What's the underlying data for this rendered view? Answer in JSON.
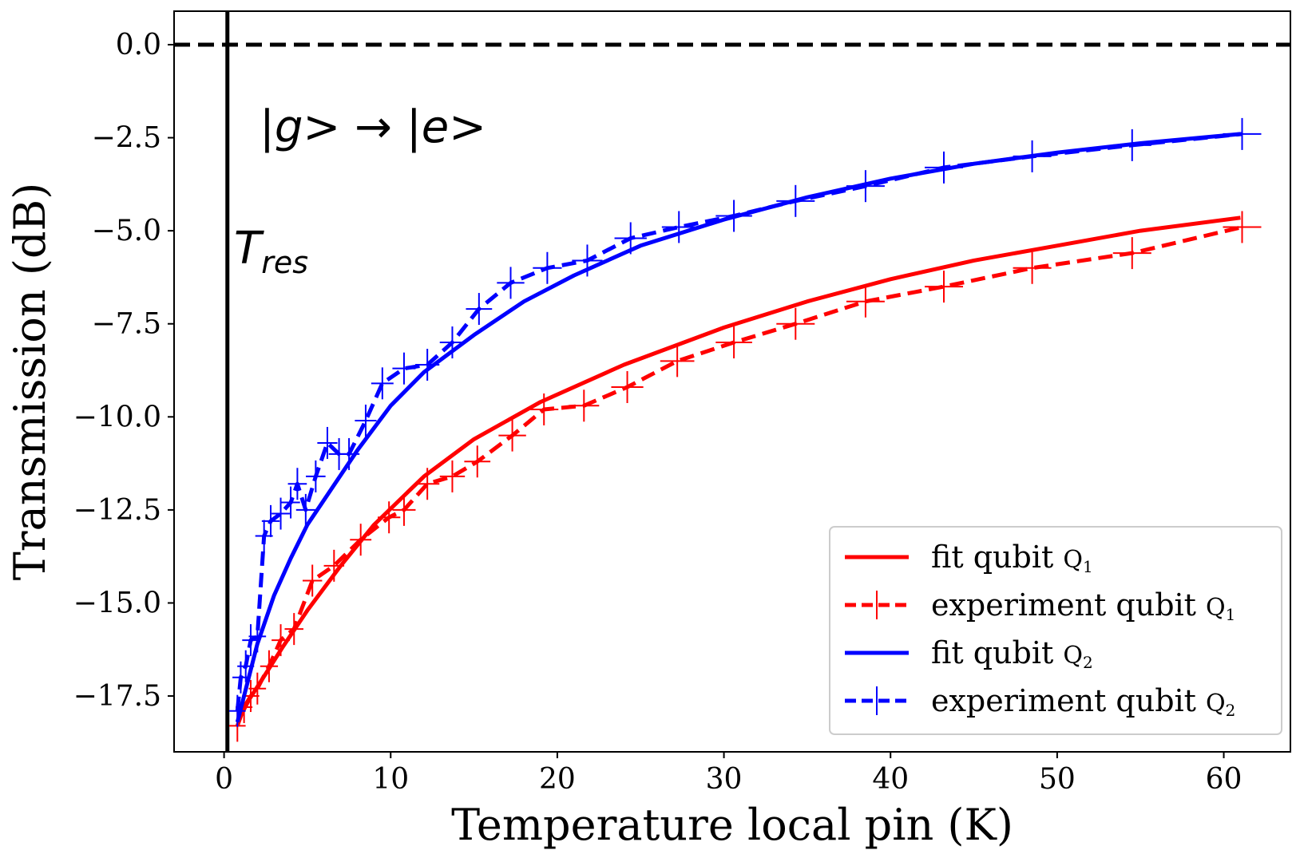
{
  "chart_data": {
    "type": "line",
    "xlabel": "Temperature local pin (K)",
    "ylabel": "Transmission (dB)",
    "xlim": [
      -3,
      64
    ],
    "ylim": [
      -19.0,
      0.9
    ],
    "xticks": [
      0,
      10,
      20,
      30,
      40,
      50,
      60
    ],
    "yticks": [
      0.0,
      -2.5,
      -5.0,
      -7.5,
      -10.0,
      -12.5,
      -15.0,
      -17.5
    ],
    "ytick_labels": [
      "0.0",
      "−2.5",
      "−5.0",
      "−7.5",
      "−10.0",
      "−12.5",
      "−15.0",
      "−17.5"
    ],
    "xtick_labels": [
      "0",
      "10",
      "20",
      "30",
      "40",
      "50",
      "60"
    ],
    "grid": false,
    "legend_position": "lower-right",
    "reference_lines": [
      {
        "orientation": "horizontal",
        "value": 0.0,
        "style": "dashed",
        "color": "#000000"
      },
      {
        "orientation": "vertical",
        "value": 0.2,
        "style": "solid",
        "color": "#000000"
      }
    ],
    "annotations": {
      "transition_text": "|g> → |e>",
      "tres_main": "T",
      "tres_sub": "res"
    },
    "series": [
      {
        "name": "fit qubit",
        "name_subscript": "Q1",
        "color": "#ff0000",
        "style": "solid",
        "x": [
          0.8,
          1.5,
          2.5,
          3.5,
          5,
          7,
          9,
          12,
          15,
          19,
          24,
          30,
          35,
          40,
          45,
          50,
          55,
          61
        ],
        "y": [
          -18.2,
          -17.6,
          -16.9,
          -16.2,
          -15.2,
          -14.0,
          -12.9,
          -11.6,
          -10.6,
          -9.6,
          -8.6,
          -7.6,
          -6.9,
          -6.3,
          -5.8,
          -5.4,
          -5.0,
          -4.65
        ]
      },
      {
        "name": "experiment qubit",
        "name_subscript": "Q1",
        "color": "#ff0000",
        "style": "dashed",
        "x": [
          0.8,
          1.2,
          1.6,
          2.0,
          2.7,
          3.4,
          4.2,
          5.3,
          6.6,
          8.2,
          9.9,
          10.8,
          12.2,
          13.7,
          15.2,
          17.3,
          19.2,
          21.6,
          24.2,
          27.2,
          30.6,
          34.3,
          38.5,
          43.2,
          48.5,
          54.5,
          61.1
        ],
        "y": [
          -18.3,
          -17.8,
          -17.5,
          -17.3,
          -16.7,
          -16.0,
          -15.7,
          -14.4,
          -14.0,
          -13.3,
          -12.7,
          -12.5,
          -11.8,
          -11.6,
          -11.2,
          -10.5,
          -9.8,
          -9.7,
          -9.2,
          -8.5,
          -8.0,
          -7.5,
          -6.9,
          -6.5,
          -6.0,
          -5.6,
          -4.9
        ]
      },
      {
        "name": "fit qubit",
        "name_subscript": "Q2",
        "color": "#0000ff",
        "style": "solid",
        "x": [
          0.8,
          1.2,
          2.0,
          3.0,
          4.0,
          5.0,
          6.5,
          8.0,
          10,
          12,
          15,
          18,
          21,
          25,
          30,
          35,
          40,
          45,
          50,
          55,
          61
        ],
        "y": [
          -18.2,
          -17.5,
          -16.1,
          -14.8,
          -13.8,
          -12.9,
          -11.9,
          -10.9,
          -9.7,
          -8.8,
          -7.8,
          -6.9,
          -6.2,
          -5.4,
          -4.7,
          -4.1,
          -3.6,
          -3.2,
          -2.9,
          -2.65,
          -2.4
        ]
      },
      {
        "name": "experiment qubit",
        "name_subscript": "Q2",
        "color": "#0000ff",
        "style": "dashed",
        "x": [
          0.8,
          1.0,
          1.3,
          1.6,
          2.0,
          2.4,
          2.8,
          3.4,
          4.0,
          4.4,
          4.9,
          5.5,
          6.2,
          6.9,
          7.5,
          8.5,
          9.5,
          10.8,
          12.2,
          13.7,
          15.3,
          17.2,
          19.4,
          21.8,
          24.4,
          27.3,
          30.6,
          34.3,
          38.5,
          43.2,
          48.5,
          54.5,
          61.1
        ],
        "y": [
          -17.9,
          -17.0,
          -16.7,
          -16.0,
          -15.9,
          -13.2,
          -12.8,
          -12.6,
          -12.3,
          -11.8,
          -12.5,
          -11.6,
          -10.7,
          -11.0,
          -11.0,
          -10.1,
          -9.1,
          -8.7,
          -8.6,
          -8.0,
          -7.1,
          -6.4,
          -6.0,
          -5.8,
          -5.2,
          -4.9,
          -4.6,
          -4.2,
          -3.8,
          -3.3,
          -3.0,
          -2.7,
          -2.4
        ]
      }
    ]
  }
}
